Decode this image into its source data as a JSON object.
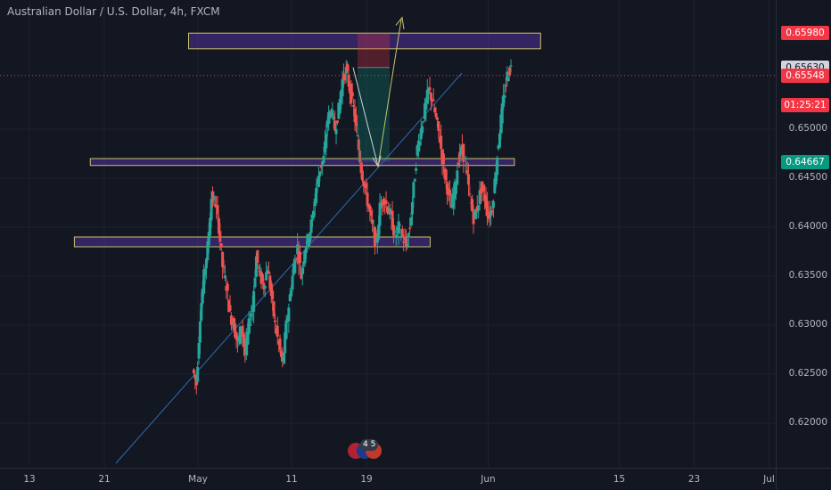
{
  "title": "Australian Dollar / U.S. Dollar, 4h, FXCM",
  "chart_data": {
    "type": "candlestick",
    "title": "Australian Dollar / U.S. Dollar, 4h, FXCM",
    "y_ticks": [
      "0.65000",
      "0.64500",
      "0.64000",
      "0.63500",
      "0.63000",
      "0.62500",
      "0.62000"
    ],
    "ylim": [
      0.617,
      0.6624
    ],
    "x_ticks": [
      {
        "label": "13",
        "day": 0
      },
      {
        "label": "21",
        "day": 8
      },
      {
        "label": "May",
        "day": 18
      },
      {
        "label": "11",
        "day": 28
      },
      {
        "label": "19",
        "day": 36
      },
      {
        "label": "Jun",
        "day": 49
      },
      {
        "label": "15",
        "day": 63
      },
      {
        "label": "23",
        "day": 71
      },
      {
        "label": "Jul",
        "day": 79
      }
    ],
    "price_badges": [
      {
        "label": "0.65980",
        "value": 0.6598,
        "color": "#f23645"
      },
      {
        "label": "0.65630",
        "value": 0.6563,
        "color": "#d1d4dc"
      },
      {
        "label": "0.65548",
        "value": 0.65548,
        "color": "#f23645"
      },
      {
        "label": "01:25:21",
        "value": 0.65248,
        "color": "#f23645"
      },
      {
        "label": "0.64667",
        "value": 0.64667,
        "color": "#089981"
      }
    ],
    "current_price": 0.65548,
    "path_points": [
      [
        17.5,
        0.6255
      ],
      [
        17.9,
        0.624
      ],
      [
        18.3,
        0.631
      ],
      [
        18.7,
        0.635
      ],
      [
        19.1,
        0.638
      ],
      [
        19.5,
        0.643
      ],
      [
        19.9,
        0.6425
      ],
      [
        20.3,
        0.64
      ],
      [
        20.7,
        0.636
      ],
      [
        21.1,
        0.634
      ],
      [
        21.5,
        0.631
      ],
      [
        21.9,
        0.63
      ],
      [
        22.3,
        0.628
      ],
      [
        22.7,
        0.63
      ],
      [
        23.1,
        0.627
      ],
      [
        23.5,
        0.63
      ],
      [
        23.9,
        0.632
      ],
      [
        24.3,
        0.637
      ],
      [
        24.7,
        0.635
      ],
      [
        25.1,
        0.634
      ],
      [
        25.5,
        0.636
      ],
      [
        25.9,
        0.633
      ],
      [
        26.3,
        0.63
      ],
      [
        26.7,
        0.628
      ],
      [
        27.1,
        0.626
      ],
      [
        27.5,
        0.63
      ],
      [
        27.9,
        0.633
      ],
      [
        28.3,
        0.636
      ],
      [
        28.7,
        0.638
      ],
      [
        29.1,
        0.635
      ],
      [
        29.5,
        0.638
      ],
      [
        29.9,
        0.639
      ],
      [
        30.3,
        0.641
      ],
      [
        30.7,
        0.644
      ],
      [
        31.1,
        0.646
      ],
      [
        31.5,
        0.647
      ],
      [
        31.9,
        0.651
      ],
      [
        32.3,
        0.652
      ],
      [
        32.7,
        0.65
      ],
      [
        33.1,
        0.652
      ],
      [
        33.5,
        0.655
      ],
      [
        33.9,
        0.656
      ],
      [
        34.3,
        0.654
      ],
      [
        34.7,
        0.652
      ],
      [
        35.1,
        0.649
      ],
      [
        35.5,
        0.646
      ],
      [
        35.9,
        0.644
      ],
      [
        36.3,
        0.642
      ],
      [
        36.7,
        0.64
      ],
      [
        37.1,
        0.638
      ],
      [
        37.5,
        0.642
      ],
      [
        37.9,
        0.643
      ],
      [
        38.3,
        0.642
      ],
      [
        38.7,
        0.641
      ],
      [
        39.1,
        0.639
      ],
      [
        39.5,
        0.64
      ],
      [
        39.9,
        0.639
      ],
      [
        40.3,
        0.638
      ],
      [
        40.7,
        0.64
      ],
      [
        41.1,
        0.644
      ],
      [
        41.5,
        0.648
      ],
      [
        41.9,
        0.65
      ],
      [
        42.3,
        0.652
      ],
      [
        42.7,
        0.654
      ],
      [
        43.1,
        0.653
      ],
      [
        43.5,
        0.651
      ],
      [
        43.9,
        0.649
      ],
      [
        44.3,
        0.646
      ],
      [
        44.7,
        0.644
      ],
      [
        45.1,
        0.642
      ],
      [
        45.5,
        0.644
      ],
      [
        45.9,
        0.647
      ],
      [
        46.3,
        0.648
      ],
      [
        46.7,
        0.646
      ],
      [
        47.1,
        0.643
      ],
      [
        47.5,
        0.641
      ],
      [
        47.9,
        0.642
      ],
      [
        48.3,
        0.644
      ],
      [
        48.7,
        0.643
      ],
      [
        49.1,
        0.641
      ],
      [
        49.5,
        0.642
      ],
      [
        49.9,
        0.646
      ],
      [
        50.3,
        0.65
      ],
      [
        50.7,
        0.653
      ],
      [
        51.1,
        0.6555
      ],
      [
        51.5,
        0.6563
      ]
    ],
    "zones": [
      {
        "name": "resistance-zone",
        "from_day": 17.0,
        "to_day": 54.6,
        "y_top": 0.6598,
        "y_bottom": 0.6582
      },
      {
        "name": "mid-support-zone",
        "from_day": 6.5,
        "to_day": 51.8,
        "y_top": 0.647,
        "y_bottom": 0.6463
      },
      {
        "name": "lower-support-zone",
        "from_day": 4.8,
        "to_day": 42.8,
        "y_top": 0.639,
        "y_bottom": 0.638
      }
    ]
  },
  "events": {
    "count": "4 5"
  }
}
